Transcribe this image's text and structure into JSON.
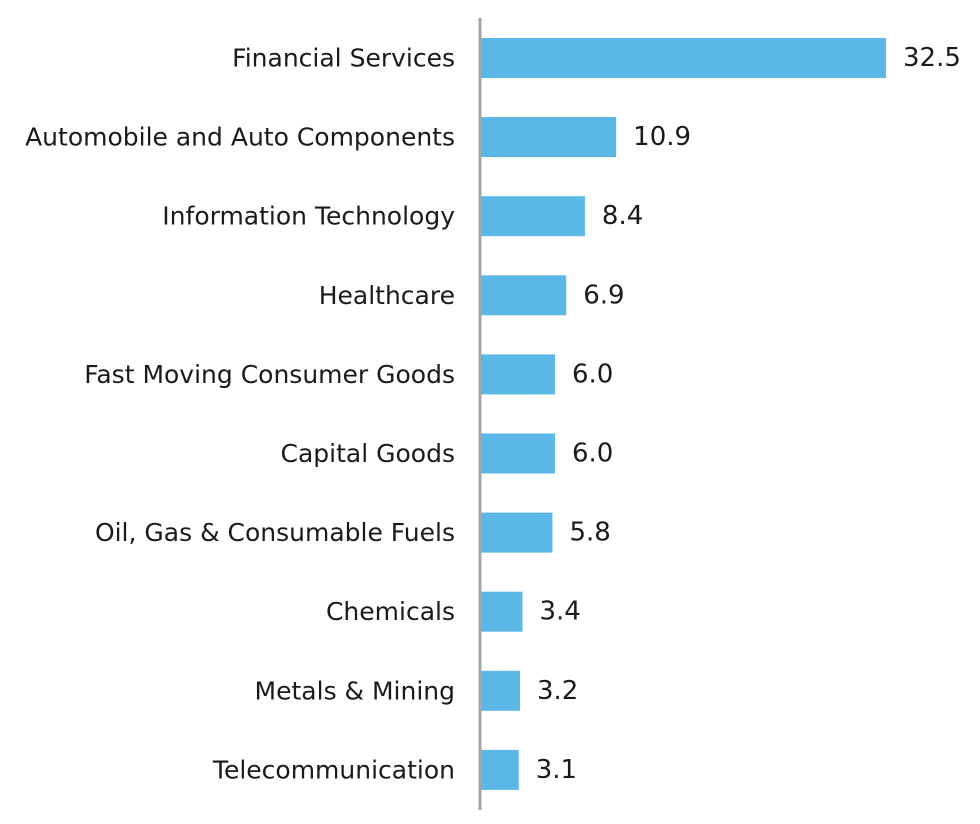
{
  "chart_data": {
    "type": "bar",
    "orientation": "horizontal",
    "title": "",
    "xlabel": "",
    "ylabel": "",
    "categories": [
      "Financial Services",
      "Automobile and Auto Components",
      "Information Technology",
      "Healthcare",
      "Fast Moving Consumer Goods",
      "Capital Goods",
      "Oil, Gas & Consumable Fuels",
      "Chemicals",
      "Metals & Mining",
      "Telecommunication"
    ],
    "values": [
      32.5,
      10.9,
      8.4,
      6.9,
      6.0,
      6.0,
      5.8,
      3.4,
      3.2,
      3.1
    ],
    "value_labels": [
      "32.5",
      "10.9",
      "8.4",
      "6.9",
      "6.0",
      "6.0",
      "5.8",
      "3.4",
      "3.2",
      "3.1"
    ],
    "xlim": [
      0,
      32.5
    ],
    "grid": false,
    "legend": "none",
    "colors": {
      "bar": "#5bb7e6",
      "axis": "#a6a6a6",
      "text": "#1a1a1a"
    }
  }
}
